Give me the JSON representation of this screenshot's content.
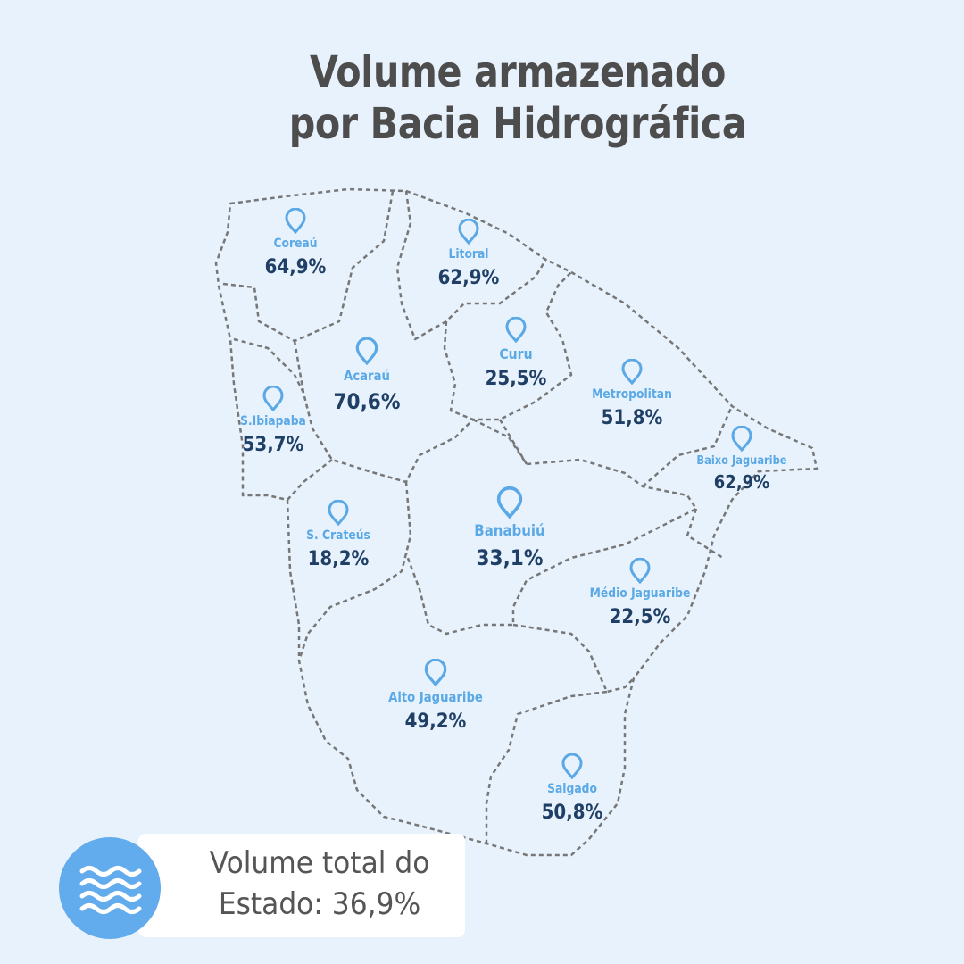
{
  "title": {
    "line1": "Volume armazenado",
    "line2": "por Bacia Hidrográfica"
  },
  "colors": {
    "background": "#e8f2fc",
    "label": "#5aa9e6",
    "value": "#1f3f66",
    "title": "#4d4d4d",
    "badge": "#62abec"
  },
  "regions": [
    {
      "name": "Coreaú",
      "value": "64,9%"
    },
    {
      "name": "Litoral",
      "value": "62,9%"
    },
    {
      "name": "Curu",
      "value": "25,5%"
    },
    {
      "name": "Acaraú",
      "value": "70,6%"
    },
    {
      "name": "Metropolitan",
      "value": "51,8%"
    },
    {
      "name": "S.Ibiapaba",
      "value": "53,7%"
    },
    {
      "name": "Baixo Jaguaribe",
      "value": "62,9%"
    },
    {
      "name": "Banabuiú",
      "value": "33,1%"
    },
    {
      "name": "S. Crateús",
      "value": "18,2%"
    },
    {
      "name": "Médio Jaguaribe",
      "value": "22,5%"
    },
    {
      "name": "Alto Jaguaribe",
      "value": "49,2%"
    },
    {
      "name": "Salgado",
      "value": "50,8%"
    }
  ],
  "total": {
    "line1": "Volume total do",
    "line2": "Estado: 36,9%",
    "icon": "water-waves-icon"
  }
}
